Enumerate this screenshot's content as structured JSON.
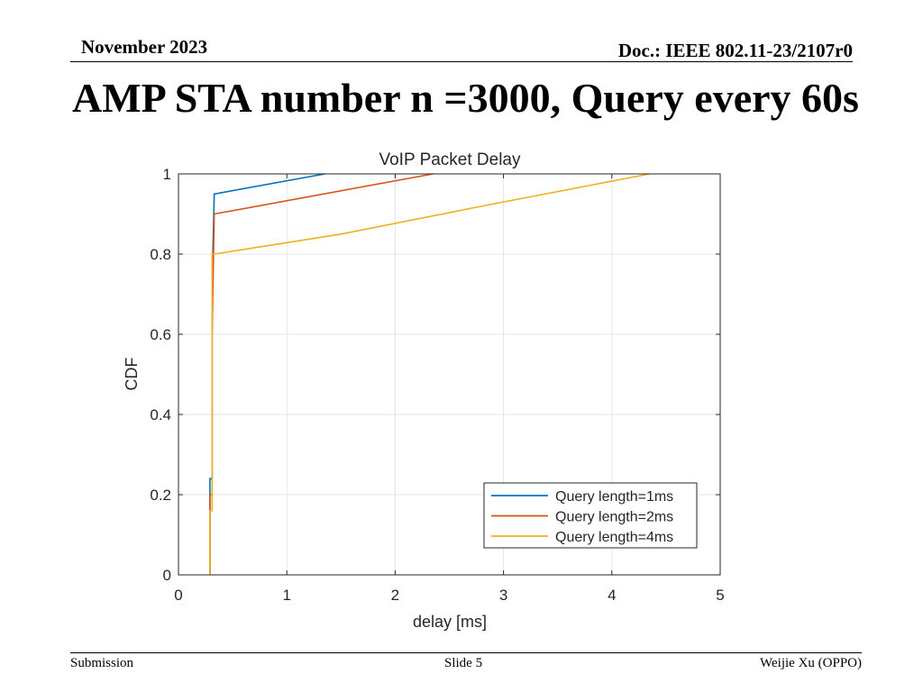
{
  "header": {
    "date": "November 2023",
    "doc": "Doc.: IEEE 802.11-23/2107r0"
  },
  "slide_title": "AMP STA number n =3000, Query every 60s",
  "footer": {
    "left": "Submission",
    "center": "Slide 5",
    "right": "Weijie Xu (OPPO)"
  },
  "colors": {
    "series1": "#0072BD",
    "series2": "#D95319",
    "series3": "#EDB120",
    "grid": "#e6e6e6",
    "axis": "#262626"
  },
  "chart_data": {
    "type": "line",
    "title": "VoIP Packet Delay",
    "xlabel": "delay [ms]",
    "ylabel": "CDF",
    "xlim": [
      0,
      5
    ],
    "ylim": [
      0,
      1
    ],
    "xticks": [
      "0",
      "1",
      "2",
      "3",
      "4",
      "5"
    ],
    "yticks": [
      "0",
      "0.2",
      "0.4",
      "0.6",
      "0.8",
      "1"
    ],
    "grid": true,
    "legend_position": "bottom-right",
    "series": [
      {
        "name": "Query length=1ms",
        "color": "#0072BD",
        "x": [
          0.29,
          0.29,
          0.31,
          0.31,
          0.33,
          1.35
        ],
        "y": [
          0,
          0.24,
          0.24,
          0.72,
          0.95,
          1.0
        ]
      },
      {
        "name": "Query length=2ms",
        "color": "#D95319",
        "x": [
          0.29,
          0.29,
          0.31,
          0.31,
          0.33,
          2.35
        ],
        "y": [
          0,
          0.2,
          0.2,
          0.6,
          0.9,
          1.0
        ]
      },
      {
        "name": "Query length=4ms",
        "color": "#EDB120",
        "x": [
          0.29,
          0.29,
          0.31,
          0.31,
          0.33,
          1.5,
          3.0,
          4.35
        ],
        "y": [
          0,
          0.16,
          0.16,
          0.8,
          0.8,
          0.85,
          0.93,
          1.0
        ]
      }
    ]
  }
}
